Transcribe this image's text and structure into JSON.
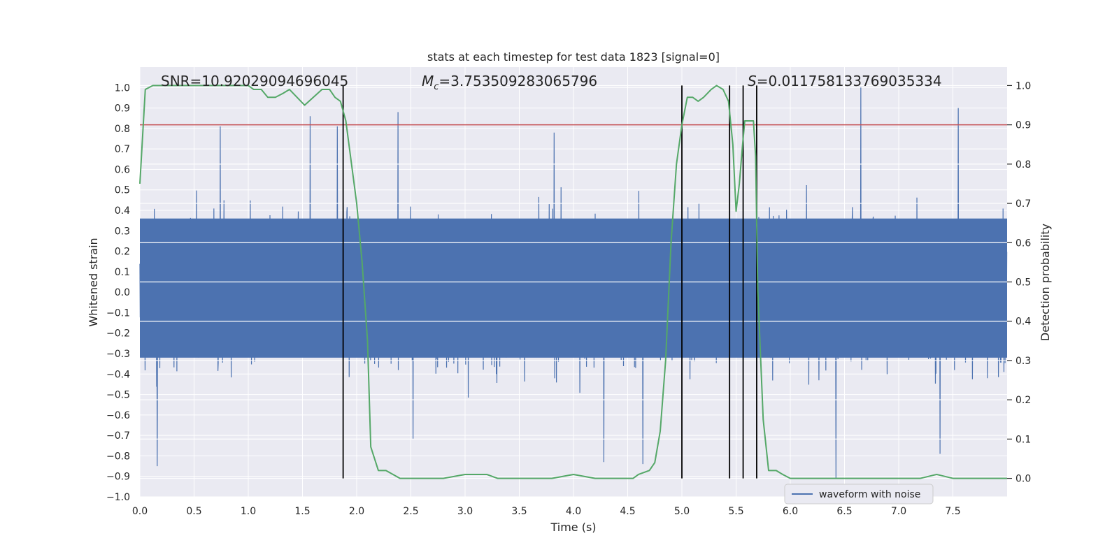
{
  "chart_data": {
    "type": "line",
    "title": "stats at each timestep for test data 1823 [signal=0]",
    "xlabel": "Time (s)",
    "ylabel_left": "Whitened strain",
    "ylabel_right": "Detection probability",
    "xlim": [
      0.0,
      8.0
    ],
    "ylim_left": [
      -1.0,
      1.1
    ],
    "ylim_right": [
      -0.047,
      1.047
    ],
    "xticks": [
      "0.0",
      "0.5",
      "1.0",
      "1.5",
      "2.0",
      "2.5",
      "3.0",
      "3.5",
      "4.0",
      "4.5",
      "5.0",
      "5.5",
      "6.0",
      "6.5",
      "7.0",
      "7.5"
    ],
    "yticks_left": [
      "-1.0",
      "-0.9",
      "-0.8",
      "-0.7",
      "-0.6",
      "-0.5",
      "-0.4",
      "-0.3",
      "-0.2",
      "-0.1",
      "0.0",
      "0.1",
      "0.2",
      "0.3",
      "0.4",
      "0.5",
      "0.6",
      "0.7",
      "0.8",
      "0.9",
      "1.0"
    ],
    "yticks_right": [
      "0.0",
      "0.1",
      "0.2",
      "0.3",
      "0.4",
      "0.5",
      "0.6",
      "0.7",
      "0.8",
      "0.9",
      "1.0"
    ],
    "annotations": {
      "snr": "SNR=10.92029094696045",
      "mc_symbol": "M",
      "mc_subscript": "c",
      "mc_value": "=3.753509283065796",
      "s_symbol": "S",
      "s_value": "=0.011758133769035334"
    },
    "legend": {
      "label": "waveform with noise",
      "location": "lower-right"
    },
    "threshold": 0.9,
    "vlines_x": [
      1.875,
      5.0,
      5.44,
      5.565,
      5.69
    ],
    "waveform": {
      "name": "waveform with noise",
      "samples": 3000,
      "t_range": [
        0.0,
        8.0
      ],
      "std": 0.2,
      "core_band": [
        -0.32,
        0.36
      ],
      "peaks": [
        {
          "t": 0.16,
          "v": -0.85
        },
        {
          "t": 0.74,
          "v": 0.81
        },
        {
          "t": 1.57,
          "v": 0.86
        },
        {
          "t": 1.82,
          "v": 0.81
        },
        {
          "t": 2.38,
          "v": 0.88
        },
        {
          "t": 2.52,
          "v": -0.72
        },
        {
          "t": 3.82,
          "v": 0.78
        },
        {
          "t": 4.28,
          "v": -0.83
        },
        {
          "t": 4.64,
          "v": -0.84
        },
        {
          "t": 6.42,
          "v": -0.91
        },
        {
          "t": 6.65,
          "v": 1.0
        },
        {
          "t": 7.38,
          "v": -0.79
        },
        {
          "t": 7.55,
          "v": 0.9
        }
      ]
    },
    "probability": {
      "name": "detection probability",
      "x": [
        0.0,
        0.05,
        0.12,
        0.3,
        0.6,
        0.9,
        1.0,
        1.05,
        1.12,
        1.18,
        1.25,
        1.32,
        1.38,
        1.45,
        1.52,
        1.6,
        1.68,
        1.75,
        1.8,
        1.85,
        1.9,
        2.0,
        2.05,
        2.1,
        2.13,
        2.2,
        2.27,
        2.4,
        2.6,
        2.8,
        3.0,
        3.1,
        3.2,
        3.3,
        3.5,
        3.8,
        4.0,
        4.2,
        4.4,
        4.5,
        4.55,
        4.6,
        4.7,
        4.75,
        4.8,
        4.85,
        4.9,
        4.95,
        5.0,
        5.05,
        5.1,
        5.15,
        5.2,
        5.27,
        5.32,
        5.38,
        5.43,
        5.47,
        5.5,
        5.53,
        5.56,
        5.58,
        5.6,
        5.62,
        5.63,
        5.66,
        5.68,
        5.7,
        5.75,
        5.8,
        5.87,
        5.93,
        6.0,
        6.5,
        7.0,
        7.2,
        7.35,
        7.5,
        7.6,
        8.0
      ],
      "y": [
        0.75,
        0.99,
        1.0,
        1.0,
        1.0,
        1.0,
        1.0,
        0.99,
        0.99,
        0.97,
        0.97,
        0.98,
        0.99,
        0.97,
        0.95,
        0.97,
        0.99,
        0.99,
        0.97,
        0.96,
        0.91,
        0.7,
        0.55,
        0.35,
        0.08,
        0.02,
        0.02,
        0.0,
        0.0,
        0.0,
        0.01,
        0.01,
        0.01,
        0.0,
        0.0,
        0.0,
        0.01,
        0.0,
        0.0,
        0.0,
        0.0,
        0.01,
        0.02,
        0.04,
        0.12,
        0.3,
        0.6,
        0.8,
        0.9,
        0.97,
        0.97,
        0.96,
        0.97,
        0.99,
        1.0,
        0.99,
        0.96,
        0.85,
        0.68,
        0.75,
        0.85,
        0.91,
        0.91,
        0.91,
        0.91,
        0.91,
        0.82,
        0.48,
        0.15,
        0.02,
        0.02,
        0.01,
        0.0,
        0.0,
        0.0,
        0.0,
        0.01,
        0.0,
        0.0,
        0.0
      ]
    },
    "colors": {
      "waveform": "#4c72b0",
      "probability": "#55a868",
      "threshold": "#c44e52",
      "vline": "#000000",
      "plot_bg": "#eaeaf2",
      "grid": "#ffffff",
      "text": "#262626"
    }
  }
}
